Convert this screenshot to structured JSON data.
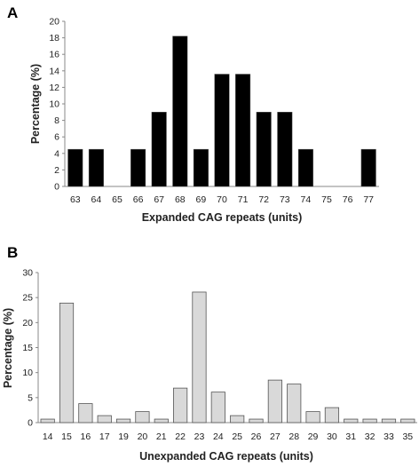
{
  "chart_data": [
    {
      "panel": "A",
      "type": "bar",
      "categories": [
        "63",
        "64",
        "65",
        "66",
        "67",
        "68",
        "69",
        "70",
        "71",
        "72",
        "73",
        "74",
        "75",
        "76",
        "77"
      ],
      "values": [
        4.5,
        4.5,
        0,
        4.5,
        9,
        18.2,
        4.5,
        13.6,
        13.6,
        9,
        9,
        4.5,
        0,
        0,
        4.5
      ],
      "xlabel": "Expanded CAG repeats (units)",
      "ylabel": "Percentage (%)",
      "ylim": [
        0,
        20
      ],
      "yticks": [
        "0",
        "2",
        "4",
        "6",
        "8",
        "10",
        "12",
        "14",
        "16",
        "18",
        "20"
      ],
      "grid": false,
      "bar_color": "#000000"
    },
    {
      "panel": "B",
      "type": "bar",
      "categories": [
        "14",
        "15",
        "16",
        "17",
        "19",
        "20",
        "21",
        "22",
        "23",
        "24",
        "25",
        "26",
        "27",
        "28",
        "29",
        "30",
        "31",
        "32",
        "33",
        "35"
      ],
      "values": [
        0.7,
        23.9,
        3.8,
        1.4,
        0.7,
        2.2,
        0.7,
        6.9,
        26.1,
        6.1,
        1.4,
        0.7,
        8.5,
        7.7,
        2.2,
        3.0,
        0.7,
        0.7,
        0.7,
        0.7
      ],
      "xlabel": "Unexpanded CAG repeats (units)",
      "ylabel": "Percentage (%)",
      "ylim": [
        0,
        30
      ],
      "yticks": [
        "0",
        "5",
        "10",
        "15",
        "20",
        "25",
        "30"
      ],
      "grid": false,
      "bar_color": "#d9d9d9"
    }
  ]
}
